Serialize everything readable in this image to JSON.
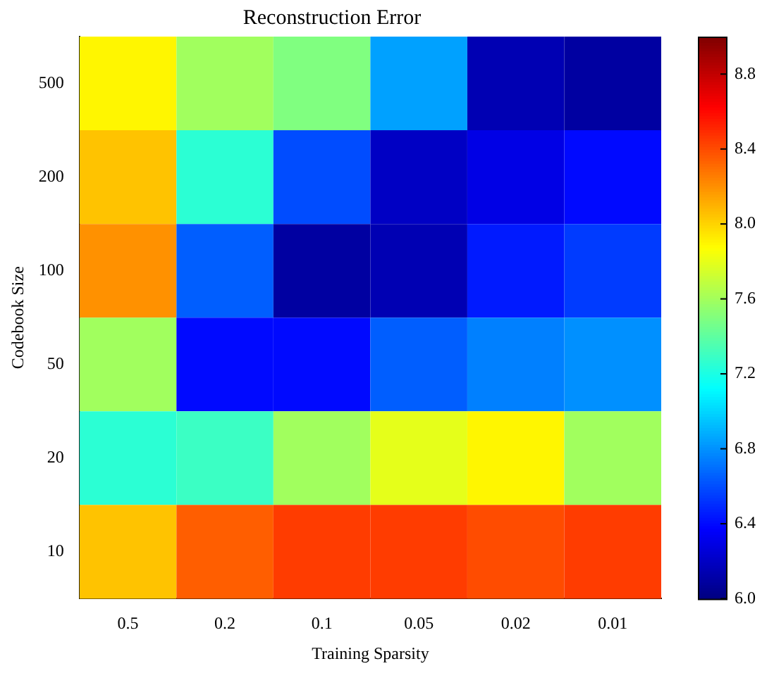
{
  "chart_data": {
    "type": "heatmap",
    "title": "Reconstruction Error",
    "xlabel": "Training Sparsity",
    "ylabel": "Codebook Size",
    "categories": [
      "0.5",
      "0.2",
      "0.1",
      "0.05",
      "0.02",
      "0.01"
    ],
    "y_categories": [
      "500",
      "200",
      "100",
      "50",
      "20",
      "10"
    ],
    "cells": [
      [
        7.9,
        7.6,
        7.5,
        6.85,
        6.15,
        6.1
      ],
      [
        8.05,
        7.25,
        6.6,
        6.2,
        6.3,
        6.4
      ],
      [
        8.2,
        6.65,
        6.1,
        6.15,
        6.45,
        6.55
      ],
      [
        7.6,
        6.4,
        6.4,
        6.65,
        6.75,
        6.8
      ],
      [
        7.25,
        7.3,
        7.6,
        7.8,
        7.9,
        7.6
      ],
      [
        8.05,
        8.35,
        8.45,
        8.45,
        8.4,
        8.45
      ]
    ],
    "clim": [
      6.0,
      9.0
    ],
    "cticks": [
      {
        "value": 6.0,
        "label": "6.0"
      },
      {
        "value": 6.4,
        "label": "6.4"
      },
      {
        "value": 6.8,
        "label": "6.8"
      },
      {
        "value": 7.2,
        "label": "7.2"
      },
      {
        "value": 7.6,
        "label": "7.6"
      },
      {
        "value": 8.0,
        "label": "8.0"
      },
      {
        "value": 8.4,
        "label": "8.4"
      },
      {
        "value": 8.8,
        "label": "8.8"
      }
    ]
  }
}
